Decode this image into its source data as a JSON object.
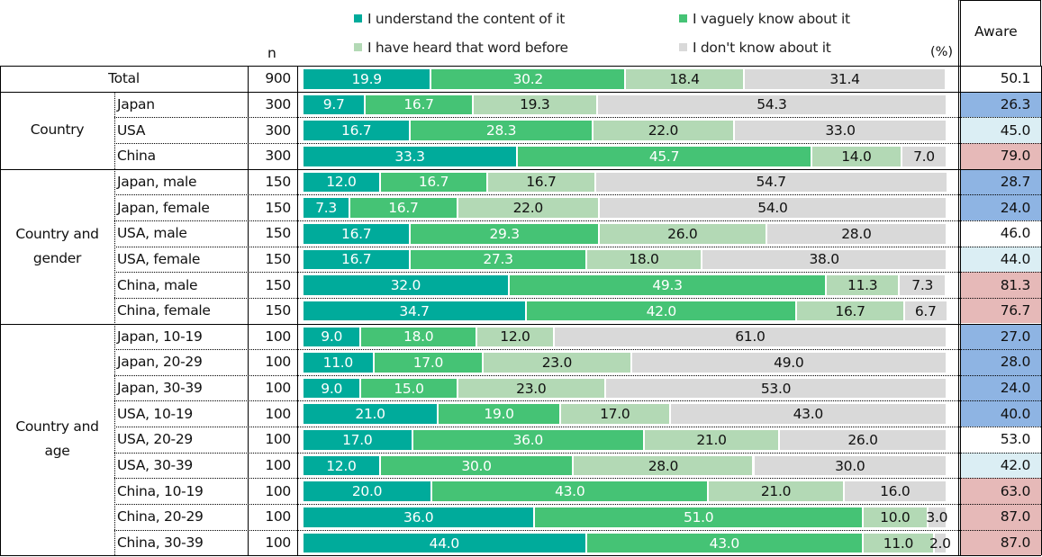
{
  "chart_data": {
    "type": "bar",
    "orientation": "horizontal-stacked-100",
    "unit_label": "(%)",
    "n_header": "n",
    "aware_header": "Aware",
    "series": [
      {
        "name": "I understand the content of it",
        "color": "#00ab9b"
      },
      {
        "name": "I vaguely know about it",
        "color": "#45c375"
      },
      {
        "name": "I have heard that word before",
        "color": "#b3d9b5"
      },
      {
        "name": "I don't know about it",
        "color": "#d9d9d9"
      }
    ],
    "aware_colors": {
      "low": "#8eb4e3",
      "mid": "#dbeef4",
      "none": "#ffffff",
      "high": "#e6b9b8"
    },
    "groups": [
      {
        "label": "Total",
        "rows": [
          {
            "label": "",
            "n": "900",
            "values": [
              "19.9",
              "30.2",
              "18.4",
              "31.4"
            ],
            "aware": "50.1",
            "aware_level": "none"
          }
        ]
      },
      {
        "label": "Country",
        "rows": [
          {
            "label": "Japan",
            "n": "300",
            "values": [
              "9.7",
              "16.7",
              "19.3",
              "54.3"
            ],
            "aware": "26.3",
            "aware_level": "low"
          },
          {
            "label": "USA",
            "n": "300",
            "values": [
              "16.7",
              "28.3",
              "22.0",
              "33.0"
            ],
            "aware": "45.0",
            "aware_level": "mid"
          },
          {
            "label": "China",
            "n": "300",
            "values": [
              "33.3",
              "45.7",
              "14.0",
              "7.0"
            ],
            "aware": "79.0",
            "aware_level": "high"
          }
        ]
      },
      {
        "label": "Country and gender",
        "rows": [
          {
            "label": "Japan, male",
            "n": "150",
            "values": [
              "12.0",
              "16.7",
              "16.7",
              "54.7"
            ],
            "aware": "28.7",
            "aware_level": "low"
          },
          {
            "label": "Japan, female",
            "n": "150",
            "values": [
              "7.3",
              "16.7",
              "22.0",
              "54.0"
            ],
            "aware": "24.0",
            "aware_level": "low"
          },
          {
            "label": "USA, male",
            "n": "150",
            "values": [
              "16.7",
              "29.3",
              "26.0",
              "28.0"
            ],
            "aware": "46.0",
            "aware_level": "none"
          },
          {
            "label": "USA, female",
            "n": "150",
            "values": [
              "16.7",
              "27.3",
              "18.0",
              "38.0"
            ],
            "aware": "44.0",
            "aware_level": "mid"
          },
          {
            "label": "China, male",
            "n": "150",
            "values": [
              "32.0",
              "49.3",
              "11.3",
              "7.3"
            ],
            "aware": "81.3",
            "aware_level": "high"
          },
          {
            "label": "China, female",
            "n": "150",
            "values": [
              "34.7",
              "42.0",
              "16.7",
              "6.7"
            ],
            "aware": "76.7",
            "aware_level": "high"
          }
        ]
      },
      {
        "label": "Country and age",
        "rows": [
          {
            "label": "Japan, 10-19",
            "n": "100",
            "values": [
              "9.0",
              "18.0",
              "12.0",
              "61.0"
            ],
            "aware": "27.0",
            "aware_level": "low"
          },
          {
            "label": "Japan, 20-29",
            "n": "100",
            "values": [
              "11.0",
              "17.0",
              "23.0",
              "49.0"
            ],
            "aware": "28.0",
            "aware_level": "low"
          },
          {
            "label": "Japan, 30-39",
            "n": "100",
            "values": [
              "9.0",
              "15.0",
              "23.0",
              "53.0"
            ],
            "aware": "24.0",
            "aware_level": "low"
          },
          {
            "label": "USA, 10-19",
            "n": "100",
            "values": [
              "21.0",
              "19.0",
              "17.0",
              "43.0"
            ],
            "aware": "40.0",
            "aware_level": "low"
          },
          {
            "label": "USA, 20-29",
            "n": "100",
            "values": [
              "17.0",
              "36.0",
              "21.0",
              "26.0"
            ],
            "aware": "53.0",
            "aware_level": "none"
          },
          {
            "label": "USA, 30-39",
            "n": "100",
            "values": [
              "12.0",
              "30.0",
              "28.0",
              "30.0"
            ],
            "aware": "42.0",
            "aware_level": "mid"
          },
          {
            "label": "China, 10-19",
            "n": "100",
            "values": [
              "20.0",
              "43.0",
              "21.0",
              "16.0"
            ],
            "aware": "63.0",
            "aware_level": "high"
          },
          {
            "label": "China, 20-29",
            "n": "100",
            "values": [
              "36.0",
              "51.0",
              "10.0",
              "3.0"
            ],
            "aware": "87.0",
            "aware_level": "high"
          },
          {
            "label": "China, 30-39",
            "n": "100",
            "values": [
              "44.0",
              "43.0",
              "11.0",
              "2.0"
            ],
            "aware": "87.0",
            "aware_level": "high"
          }
        ]
      }
    ]
  }
}
